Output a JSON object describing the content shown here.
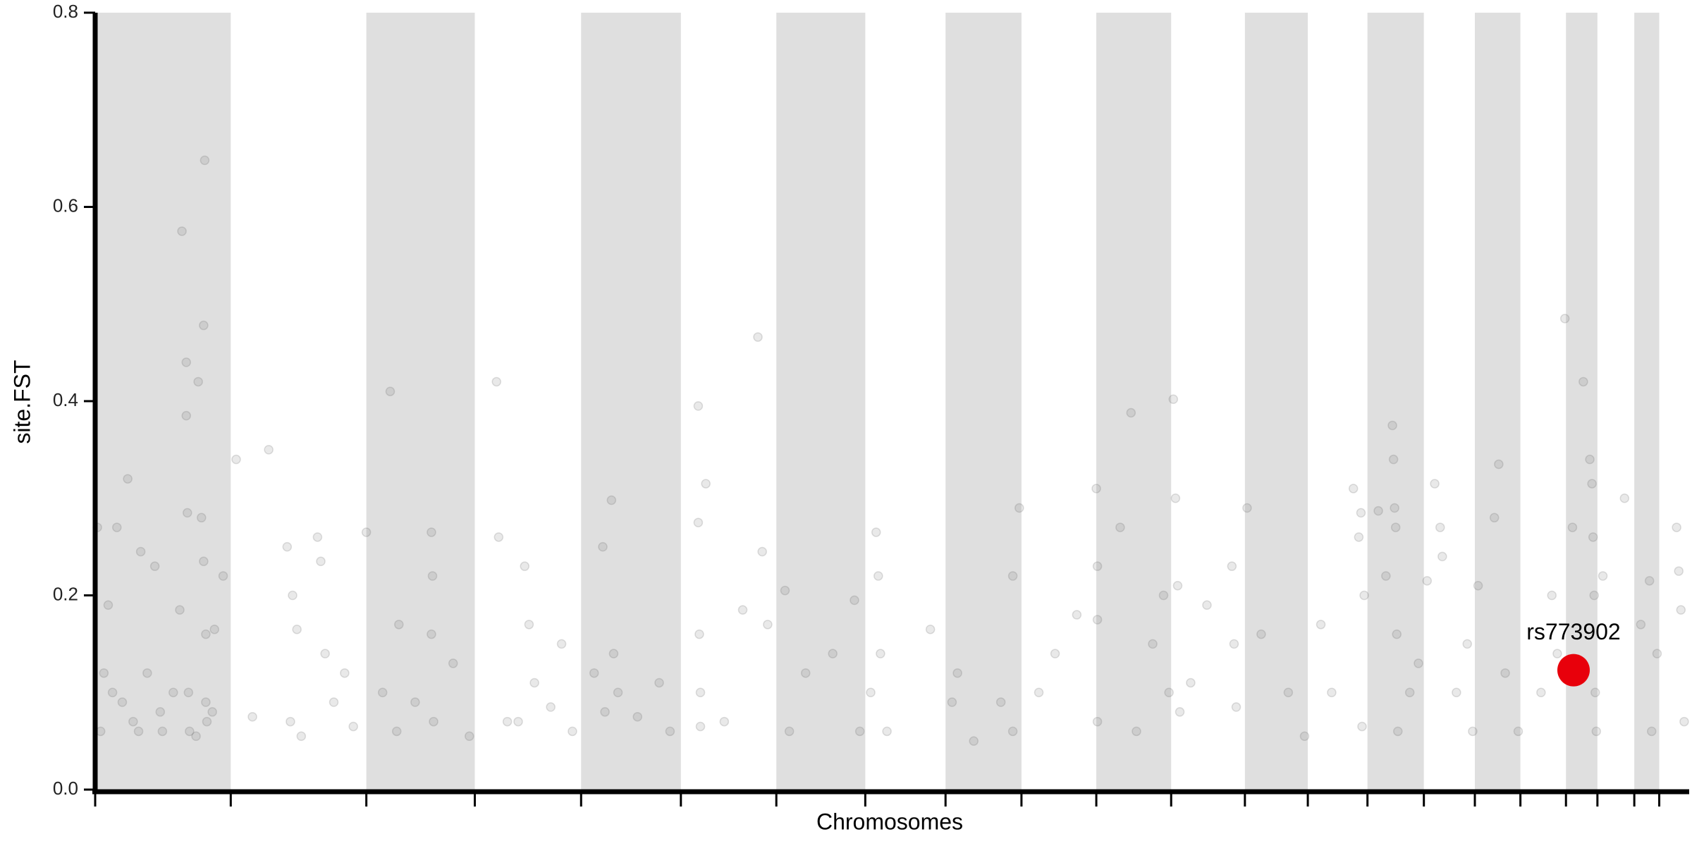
{
  "chart_data": {
    "type": "scatter",
    "x_label": "Chromosomes",
    "y_label": "site.FST",
    "xlim": [
      0,
      1467
    ],
    "xticks": [
      0,
      125,
      250,
      350,
      448,
      540,
      628,
      710,
      784,
      854,
      923,
      992,
      1060,
      1118,
      1173,
      1225,
      1272,
      1314,
      1356,
      1385,
      1419,
      1442
    ],
    "ylim": [
      0,
      0.8
    ],
    "yticks": [
      {
        "value": 0,
        "label": "0.0"
      },
      0.2,
      0.4,
      0.6,
      0.8
    ],
    "band_color": "#dfdfdf",
    "series": [
      {
        "color": "#555555",
        "x": [
          2,
          5,
          8,
          12,
          16,
          20,
          25,
          30,
          35,
          42,
          48,
          55,
          60,
          72,
          78,
          80,
          84,
          84,
          85,
          86,
          87,
          95,
          98,
          100,
          101,
          100,
          102,
          102,
          103,
          110,
          118,
          40,
          62,
          93,
          108,
          130,
          160,
          177,
          180,
          182,
          186,
          190,
          205,
          208,
          212,
          220,
          230,
          238,
          145,
          250,
          265,
          272,
          278,
          310,
          311,
          310,
          312,
          330,
          345,
          280,
          295,
          370,
          372,
          380,
          390,
          396,
          400,
          405,
          420,
          430,
          440,
          460,
          468,
          470,
          476,
          478,
          482,
          500,
          520,
          530,
          556,
          556,
          557,
          558,
          558,
          563,
          580,
          597,
          611,
          615,
          620,
          636,
          640,
          655,
          680,
          700,
          705,
          715,
          720,
          722,
          724,
          730,
          770,
          790,
          795,
          810,
          846,
          852,
          846,
          835,
          870,
          885,
          905,
          923,
          924,
          924,
          924,
          945,
          955,
          960,
          975,
          985,
          990,
          994,
          996,
          998,
          1000,
          1010,
          1025,
          1048,
          1050,
          1052,
          1062,
          1075,
          1100,
          1115,
          1130,
          1140,
          1160,
          1165,
          1167,
          1168,
          1170,
          1183,
          1190,
          1196,
          1197,
          1198,
          1199,
          1200,
          1201,
          1212,
          1220,
          1228,
          1235,
          1240,
          1242,
          1255,
          1265,
          1270,
          1275,
          1290,
          1294,
          1300,
          1312,
          1333,
          1343,
          1348,
          1355,
          1362,
          1372,
          1378,
          1380,
          1381,
          1382,
          1383,
          1384,
          1390,
          1410,
          1425,
          1433,
          1435,
          1440,
          1458,
          1460,
          1462,
          1465
        ],
        "values": [
          0.27,
          0.06,
          0.12,
          0.19,
          0.1,
          0.27,
          0.09,
          0.32,
          0.07,
          0.245,
          0.12,
          0.23,
          0.08,
          0.1,
          0.185,
          0.575,
          0.44,
          0.385,
          0.285,
          0.1,
          0.06,
          0.42,
          0.28,
          0.478,
          0.648,
          0.235,
          0.16,
          0.09,
          0.07,
          0.165,
          0.22,
          0.06,
          0.06,
          0.055,
          0.08,
          0.34,
          0.35,
          0.25,
          0.07,
          0.2,
          0.165,
          0.055,
          0.26,
          0.235,
          0.14,
          0.09,
          0.12,
          0.065,
          0.075,
          0.265,
          0.1,
          0.41,
          0.06,
          0.265,
          0.22,
          0.16,
          0.07,
          0.13,
          0.055,
          0.17,
          0.09,
          0.42,
          0.26,
          0.07,
          0.07,
          0.23,
          0.17,
          0.11,
          0.085,
          0.15,
          0.06,
          0.12,
          0.25,
          0.08,
          0.298,
          0.14,
          0.1,
          0.075,
          0.11,
          0.06,
          0.395,
          0.275,
          0.16,
          0.1,
          0.065,
          0.315,
          0.07,
          0.185,
          0.466,
          0.245,
          0.17,
          0.205,
          0.06,
          0.12,
          0.14,
          0.195,
          0.06,
          0.1,
          0.265,
          0.22,
          0.14,
          0.06,
          0.165,
          0.09,
          0.12,
          0.05,
          0.22,
          0.29,
          0.06,
          0.09,
          0.1,
          0.14,
          0.18,
          0.31,
          0.175,
          0.07,
          0.23,
          0.27,
          0.388,
          0.06,
          0.15,
          0.2,
          0.1,
          0.402,
          0.3,
          0.21,
          0.08,
          0.11,
          0.19,
          0.23,
          0.15,
          0.085,
          0.29,
          0.16,
          0.1,
          0.055,
          0.17,
          0.1,
          0.31,
          0.26,
          0.285,
          0.065,
          0.2,
          0.287,
          0.22,
          0.375,
          0.34,
          0.29,
          0.27,
          0.16,
          0.06,
          0.1,
          0.13,
          0.215,
          0.315,
          0.27,
          0.24,
          0.1,
          0.15,
          0.06,
          0.21,
          0.28,
          0.335,
          0.12,
          0.06,
          0.1,
          0.2,
          0.14,
          0.485,
          0.27,
          0.42,
          0.34,
          0.315,
          0.26,
          0.2,
          0.1,
          0.06,
          0.22,
          0.3,
          0.17,
          0.215,
          0.06,
          0.14,
          0.27,
          0.225,
          0.185,
          0.07
        ]
      }
    ],
    "highlight": {
      "label": "rs773902",
      "x": 1363,
      "y": 0.123,
      "color": "#e8000b"
    }
  }
}
